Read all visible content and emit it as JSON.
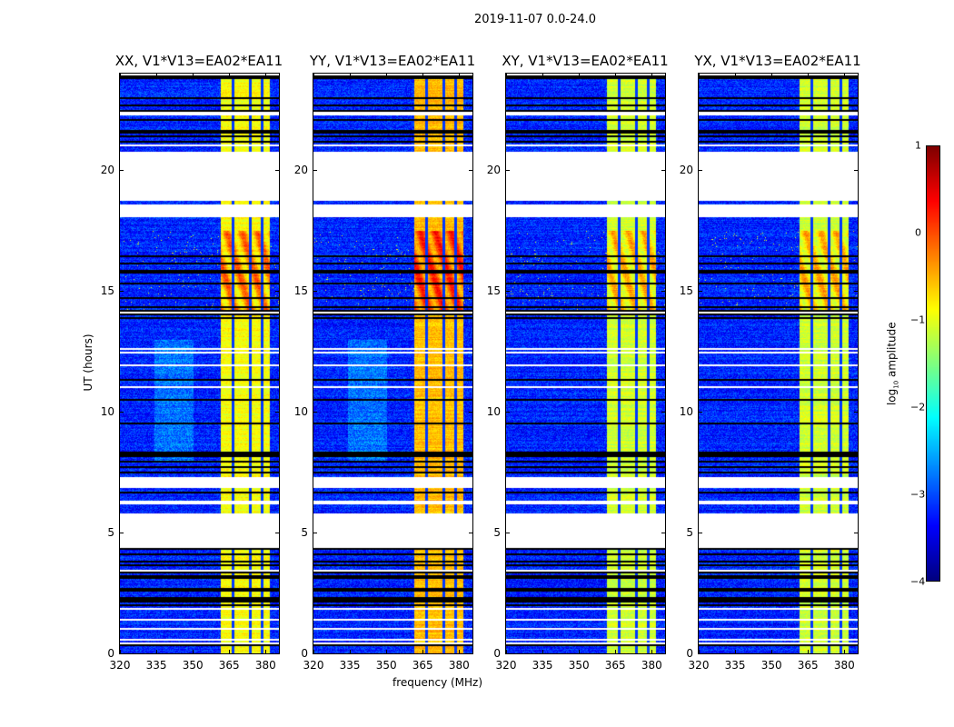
{
  "chart_data": {
    "type": "heatmap",
    "suptitle": "2019-11-07 0.0-24.0",
    "xlabel": "frequency (MHz)",
    "ylabel": "UT (hours)",
    "xlim": [
      320,
      385.5
    ],
    "ylim": [
      0,
      24
    ],
    "xticks": [
      "320",
      "335",
      "350",
      "365",
      "380"
    ],
    "xtick_values": [
      320,
      335,
      350,
      365,
      380
    ],
    "yticks": [
      "0",
      "5",
      "10",
      "15",
      "20"
    ],
    "ytick_values": [
      0,
      5,
      10,
      15,
      20
    ],
    "colorbar": {
      "label": "log10 amplitude",
      "label_main": "log",
      "label_sub": "10",
      "label_rest": " amplitude",
      "range": [
        -4,
        1
      ],
      "ticks": [
        "1",
        "0",
        "−1",
        "−2",
        "−3",
        "−4"
      ],
      "tick_values": [
        1,
        0,
        -1,
        -2,
        -3,
        -4
      ],
      "colormap": "jet"
    },
    "panels": [
      {
        "title": "XX, V1*V13=EA02*EA11",
        "band_level": -0.9,
        "rfi_boost": 0.9
      },
      {
        "title": "YY, V1*V13=EA02*EA11",
        "band_level": -0.55,
        "rfi_boost": 0.9
      },
      {
        "title": "XY, V1*V13=EA02*EA11",
        "band_level": -1.1,
        "rfi_boost": 0.75
      },
      {
        "title": "YX, V1*V13=EA02*EA11",
        "band_level": -1.1,
        "rfi_boost": 0.75
      }
    ],
    "background_level": -3.2,
    "bright_band_mhz": [
      361.5,
      381.5
    ],
    "band_gaps_mhz": [
      366.3,
      373.5,
      378.5
    ],
    "rfi_hours": [
      14.2,
      17.5
    ],
    "masked_hours": [
      [
        18.8,
        20.8
      ],
      [
        18.1,
        18.6
      ],
      [
        4.5,
        5.8
      ],
      [
        6.9,
        7.3
      ]
    ],
    "dense_flag_hours": [
      [
        0,
        4.5
      ],
      [
        7.5,
        9
      ],
      [
        12.8,
        16.5
      ],
      [
        21,
        24
      ]
    ]
  }
}
